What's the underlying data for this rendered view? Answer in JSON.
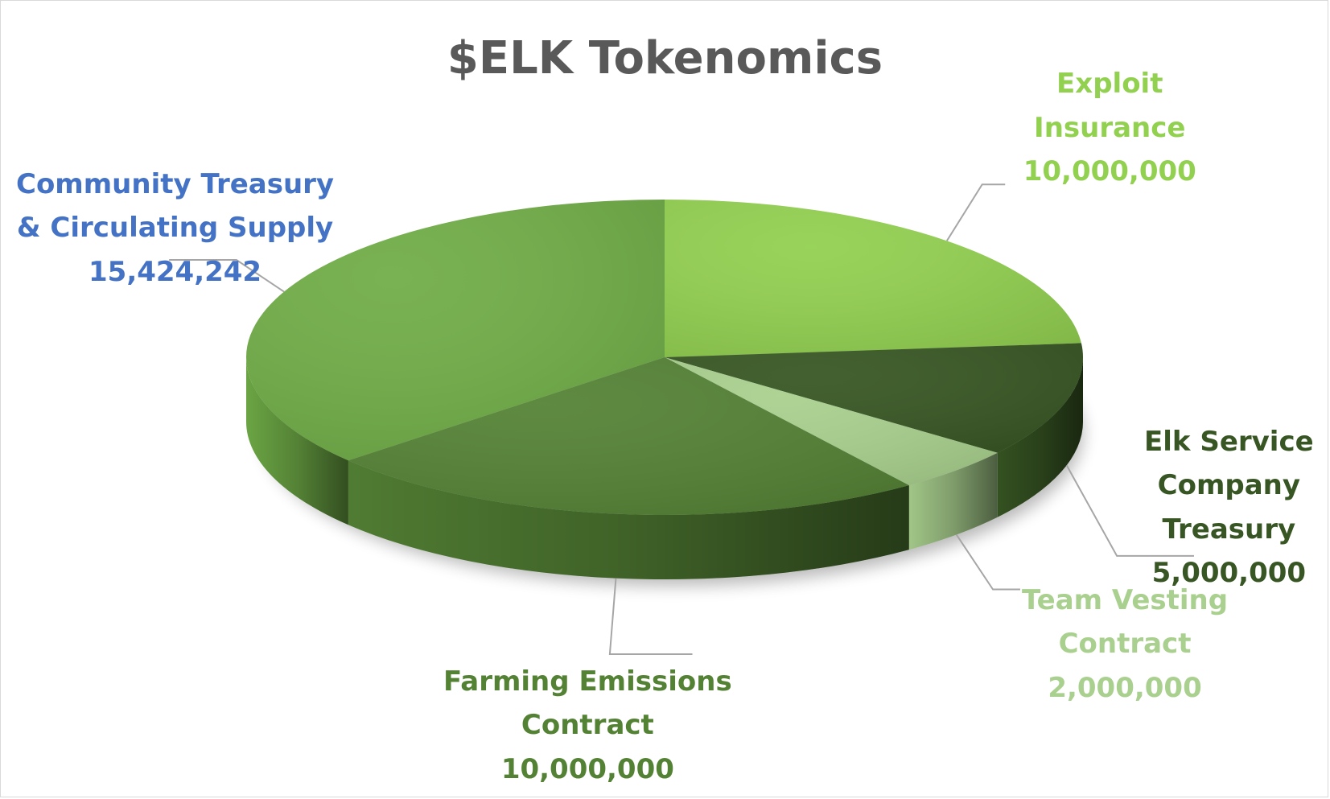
{
  "chart_data": {
    "type": "pie",
    "title": "$ELK Tokenomics",
    "three_d": true,
    "slices": [
      {
        "label_lines": [
          "Exploit",
          "Insurance"
        ],
        "value": 10000000,
        "value_label": "10,000,000",
        "color": "#92d050"
      },
      {
        "label_lines": [
          "Elk Service",
          "Company",
          "Treasury"
        ],
        "value": 5000000,
        "value_label": "5,000,000",
        "color": "#375623"
      },
      {
        "label_lines": [
          "Team Vesting",
          "Contract"
        ],
        "value": 2000000,
        "value_label": "2,000,000",
        "color": "#a9d08e"
      },
      {
        "label_lines": [
          "Farming Emissions",
          "Contract"
        ],
        "value": 10000000,
        "value_label": "10,000,000",
        "color": "#548235"
      },
      {
        "label_lines": [
          "Community Treasury",
          "& Circulating Supply"
        ],
        "value": 15424242,
        "value_label": "15,424,242",
        "color": "#70ad47",
        "label_color": "#4472c4"
      }
    ]
  }
}
